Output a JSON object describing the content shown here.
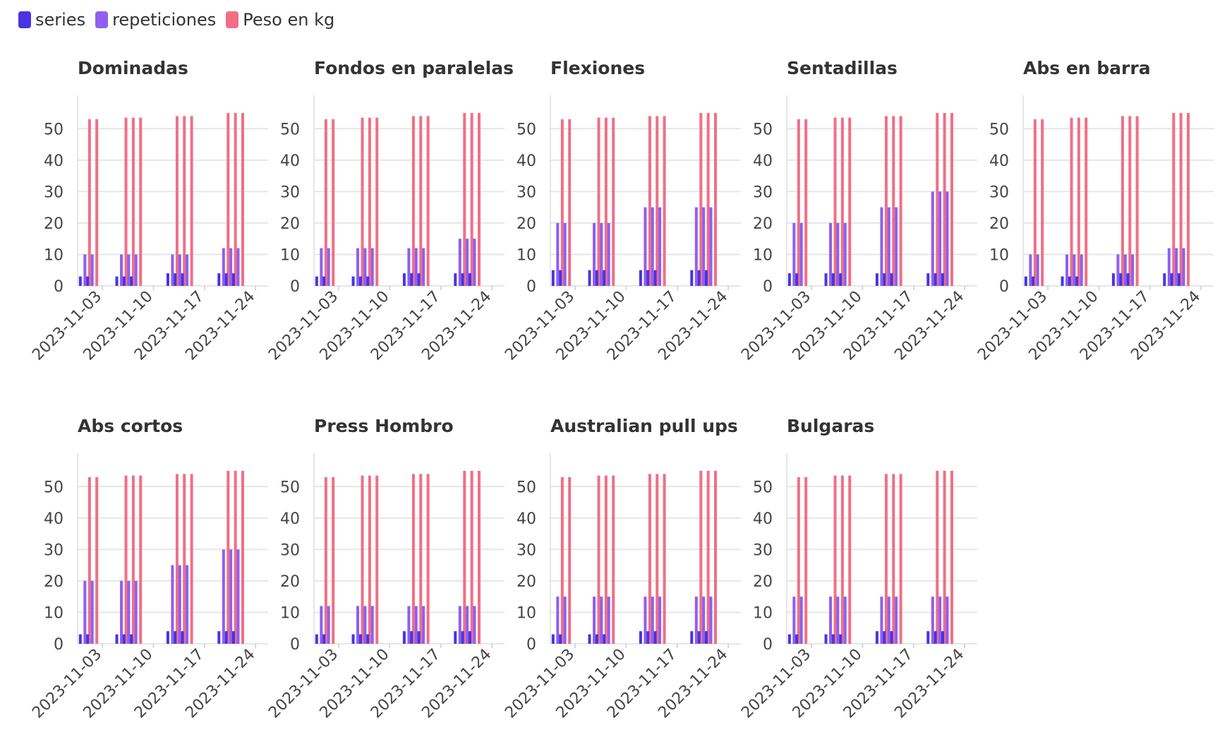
{
  "legend": [
    {
      "label": "series",
      "color": "#4834e0"
    },
    {
      "label": "repeticiones",
      "color": "#8f5ff0"
    },
    {
      "label": "Peso en kg",
      "color": "#f06f86"
    }
  ],
  "chart_data": [
    {
      "type": "bar",
      "title": "Dominadas",
      "categories": [
        "2023-11-01",
        "2023-11-02",
        "2023-11-06",
        "2023-11-07",
        "2023-11-08",
        "2023-11-13",
        "2023-11-14",
        "2023-11-15",
        "2023-11-20",
        "2023-11-21",
        "2023-11-22"
      ],
      "series": [
        {
          "name": "series",
          "values": [
            3,
            3,
            3,
            3,
            3,
            4,
            4,
            4,
            4,
            4,
            4
          ]
        },
        {
          "name": "repeticiones",
          "values": [
            10,
            10,
            10,
            10,
            10,
            10,
            10,
            10,
            12,
            12,
            12
          ]
        },
        {
          "name": "Peso en kg",
          "values": [
            53,
            53,
            53.5,
            53.5,
            53.5,
            54,
            54,
            54,
            55,
            55,
            55
          ]
        }
      ],
      "x_ticks": [
        "2023-11-03",
        "2023-11-10",
        "2023-11-17",
        "2023-11-24"
      ],
      "y_ticks": [
        0,
        10,
        20,
        30,
        40,
        50
      ],
      "ylim": [
        0,
        55
      ]
    },
    {
      "type": "bar",
      "title": "Fondos en paralelas",
      "categories": [
        "2023-11-01",
        "2023-11-02",
        "2023-11-06",
        "2023-11-07",
        "2023-11-08",
        "2023-11-13",
        "2023-11-14",
        "2023-11-15",
        "2023-11-20",
        "2023-11-21",
        "2023-11-22"
      ],
      "series": [
        {
          "name": "series",
          "values": [
            3,
            3,
            3,
            3,
            3,
            4,
            4,
            4,
            4,
            4,
            4
          ]
        },
        {
          "name": "repeticiones",
          "values": [
            12,
            12,
            12,
            12,
            12,
            12,
            12,
            12,
            15,
            15,
            15
          ]
        },
        {
          "name": "Peso en kg",
          "values": [
            53,
            53,
            53.5,
            53.5,
            53.5,
            54,
            54,
            54,
            55,
            55,
            55
          ]
        }
      ],
      "x_ticks": [
        "2023-11-03",
        "2023-11-10",
        "2023-11-17",
        "2023-11-24"
      ],
      "y_ticks": [
        0,
        10,
        20,
        30,
        40,
        50
      ],
      "ylim": [
        0,
        55
      ]
    },
    {
      "type": "bar",
      "title": "Flexiones",
      "categories": [
        "2023-11-01",
        "2023-11-02",
        "2023-11-06",
        "2023-11-07",
        "2023-11-08",
        "2023-11-13",
        "2023-11-14",
        "2023-11-15",
        "2023-11-20",
        "2023-11-21",
        "2023-11-22"
      ],
      "series": [
        {
          "name": "series",
          "values": [
            5,
            5,
            5,
            5,
            5,
            5,
            5,
            5,
            5,
            5,
            5
          ]
        },
        {
          "name": "repeticiones",
          "values": [
            20,
            20,
            20,
            20,
            20,
            25,
            25,
            25,
            25,
            25,
            25
          ]
        },
        {
          "name": "Peso en kg",
          "values": [
            53,
            53,
            53.5,
            53.5,
            53.5,
            54,
            54,
            54,
            55,
            55,
            55
          ]
        }
      ],
      "x_ticks": [
        "2023-11-03",
        "2023-11-10",
        "2023-11-17",
        "2023-11-24"
      ],
      "y_ticks": [
        0,
        10,
        20,
        30,
        40,
        50
      ],
      "ylim": [
        0,
        55
      ]
    },
    {
      "type": "bar",
      "title": "Sentadillas",
      "categories": [
        "2023-11-01",
        "2023-11-02",
        "2023-11-06",
        "2023-11-07",
        "2023-11-08",
        "2023-11-13",
        "2023-11-14",
        "2023-11-15",
        "2023-11-20",
        "2023-11-21",
        "2023-11-22"
      ],
      "series": [
        {
          "name": "series",
          "values": [
            4,
            4,
            4,
            4,
            4,
            4,
            4,
            4,
            4,
            4,
            4
          ]
        },
        {
          "name": "repeticiones",
          "values": [
            20,
            20,
            20,
            20,
            20,
            25,
            25,
            25,
            30,
            30,
            30
          ]
        },
        {
          "name": "Peso en kg",
          "values": [
            53,
            53,
            53.5,
            53.5,
            53.5,
            54,
            54,
            54,
            55,
            55,
            55
          ]
        }
      ],
      "x_ticks": [
        "2023-11-03",
        "2023-11-10",
        "2023-11-17",
        "2023-11-24"
      ],
      "y_ticks": [
        0,
        10,
        20,
        30,
        40,
        50
      ],
      "ylim": [
        0,
        55
      ]
    },
    {
      "type": "bar",
      "title": "Abs en barra",
      "categories": [
        "2023-11-01",
        "2023-11-02",
        "2023-11-06",
        "2023-11-07",
        "2023-11-08",
        "2023-11-13",
        "2023-11-14",
        "2023-11-15",
        "2023-11-20",
        "2023-11-21",
        "2023-11-22"
      ],
      "series": [
        {
          "name": "series",
          "values": [
            3,
            3,
            3,
            3,
            3,
            4,
            4,
            4,
            4,
            4,
            4
          ]
        },
        {
          "name": "repeticiones",
          "values": [
            10,
            10,
            10,
            10,
            10,
            10,
            10,
            10,
            12,
            12,
            12
          ]
        },
        {
          "name": "Peso en kg",
          "values": [
            53,
            53,
            53.5,
            53.5,
            53.5,
            54,
            54,
            54,
            55,
            55,
            55
          ]
        }
      ],
      "x_ticks": [
        "2023-11-03",
        "2023-11-10",
        "2023-11-17",
        "2023-11-24"
      ],
      "y_ticks": [
        0,
        10,
        20,
        30,
        40,
        50
      ],
      "ylim": [
        0,
        55
      ]
    },
    {
      "type": "bar",
      "title": "Abs cortos",
      "categories": [
        "2023-11-01",
        "2023-11-02",
        "2023-11-06",
        "2023-11-07",
        "2023-11-08",
        "2023-11-13",
        "2023-11-14",
        "2023-11-15",
        "2023-11-20",
        "2023-11-21",
        "2023-11-22"
      ],
      "series": [
        {
          "name": "series",
          "values": [
            3,
            3,
            3,
            3,
            3,
            4,
            4,
            4,
            4,
            4,
            4
          ]
        },
        {
          "name": "repeticiones",
          "values": [
            20,
            20,
            20,
            20,
            20,
            25,
            25,
            25,
            30,
            30,
            30
          ]
        },
        {
          "name": "Peso en kg",
          "values": [
            53,
            53,
            53.5,
            53.5,
            53.5,
            54,
            54,
            54,
            55,
            55,
            55
          ]
        }
      ],
      "x_ticks": [
        "2023-11-03",
        "2023-11-10",
        "2023-11-17",
        "2023-11-24"
      ],
      "y_ticks": [
        0,
        10,
        20,
        30,
        40,
        50
      ],
      "ylim": [
        0,
        55
      ]
    },
    {
      "type": "bar",
      "title": "Press Hombro",
      "categories": [
        "2023-11-01",
        "2023-11-02",
        "2023-11-06",
        "2023-11-07",
        "2023-11-08",
        "2023-11-13",
        "2023-11-14",
        "2023-11-15",
        "2023-11-20",
        "2023-11-21",
        "2023-11-22"
      ],
      "series": [
        {
          "name": "series",
          "values": [
            3,
            3,
            3,
            3,
            3,
            4,
            4,
            4,
            4,
            4,
            4
          ]
        },
        {
          "name": "repeticiones",
          "values": [
            12,
            12,
            12,
            12,
            12,
            12,
            12,
            12,
            12,
            12,
            12
          ]
        },
        {
          "name": "Peso en kg",
          "values": [
            53,
            53,
            53.5,
            53.5,
            53.5,
            54,
            54,
            54,
            55,
            55,
            55
          ]
        }
      ],
      "x_ticks": [
        "2023-11-03",
        "2023-11-10",
        "2023-11-17",
        "2023-11-24"
      ],
      "y_ticks": [
        0,
        10,
        20,
        30,
        40,
        50
      ],
      "ylim": [
        0,
        55
      ]
    },
    {
      "type": "bar",
      "title": "Australian pull ups",
      "categories": [
        "2023-11-01",
        "2023-11-02",
        "2023-11-06",
        "2023-11-07",
        "2023-11-08",
        "2023-11-13",
        "2023-11-14",
        "2023-11-15",
        "2023-11-20",
        "2023-11-21",
        "2023-11-22"
      ],
      "series": [
        {
          "name": "series",
          "values": [
            3,
            3,
            3,
            3,
            3,
            4,
            4,
            4,
            4,
            4,
            4
          ]
        },
        {
          "name": "repeticiones",
          "values": [
            15,
            15,
            15,
            15,
            15,
            15,
            15,
            15,
            15,
            15,
            15
          ]
        },
        {
          "name": "Peso en kg",
          "values": [
            53,
            53,
            53.5,
            53.5,
            53.5,
            54,
            54,
            54,
            55,
            55,
            55
          ]
        }
      ],
      "x_ticks": [
        "2023-11-03",
        "2023-11-10",
        "2023-11-17",
        "2023-11-24"
      ],
      "y_ticks": [
        0,
        10,
        20,
        30,
        40,
        50
      ],
      "ylim": [
        0,
        55
      ]
    },
    {
      "type": "bar",
      "title": "Bulgaras",
      "categories": [
        "2023-11-01",
        "2023-11-02",
        "2023-11-06",
        "2023-11-07",
        "2023-11-08",
        "2023-11-13",
        "2023-11-14",
        "2023-11-15",
        "2023-11-20",
        "2023-11-21",
        "2023-11-22"
      ],
      "series": [
        {
          "name": "series",
          "values": [
            3,
            3,
            3,
            3,
            3,
            4,
            4,
            4,
            4,
            4,
            4
          ]
        },
        {
          "name": "repeticiones",
          "values": [
            15,
            15,
            15,
            15,
            15,
            15,
            15,
            15,
            15,
            15,
            15
          ]
        },
        {
          "name": "Peso en kg",
          "values": [
            53,
            53,
            53.5,
            53.5,
            53.5,
            54,
            54,
            54,
            55,
            55,
            55
          ]
        }
      ],
      "x_ticks": [
        "2023-11-03",
        "2023-11-10",
        "2023-11-17",
        "2023-11-24"
      ],
      "y_ticks": [
        0,
        10,
        20,
        30,
        40,
        50
      ],
      "ylim": [
        0,
        55
      ]
    }
  ]
}
